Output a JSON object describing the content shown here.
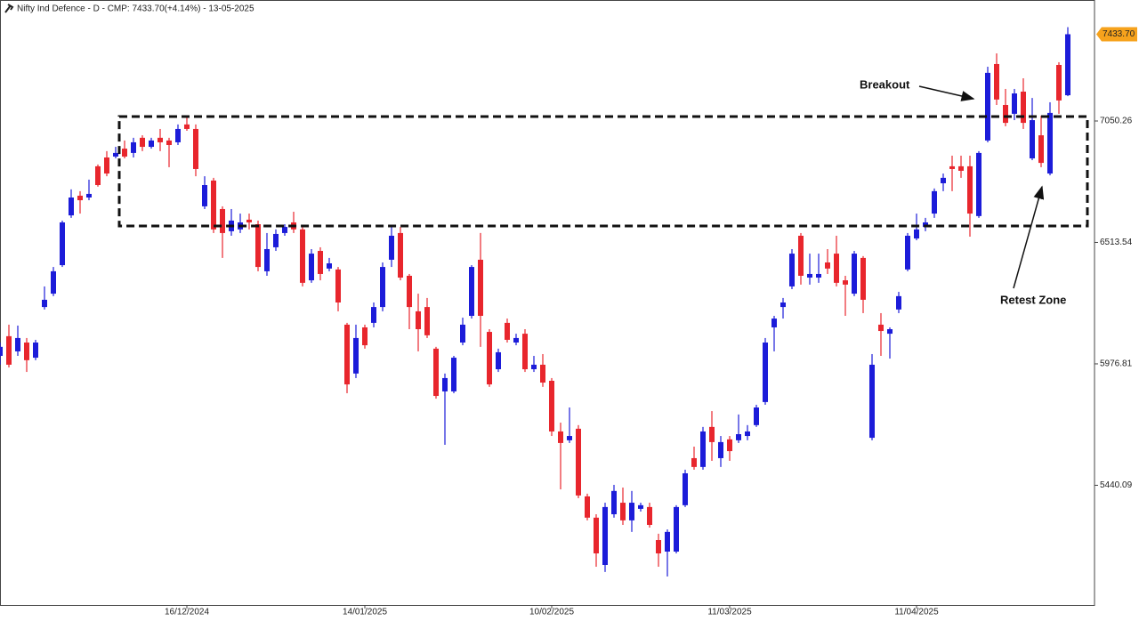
{
  "chart_data": {
    "type": "candlestick",
    "title": "Nifty Ind Defence - D - CMP: 7433.70(+4.14%) - 13-05-2025",
    "categories": [
      null,
      null,
      null,
      null,
      null,
      null,
      null,
      null,
      null,
      null,
      null,
      null,
      null,
      null,
      null,
      null,
      null,
      null,
      null,
      null,
      null,
      "16/12/2024",
      null,
      null,
      null,
      null,
      null,
      null,
      null,
      null,
      null,
      null,
      null,
      null,
      null,
      null,
      null,
      null,
      null,
      null,
      null,
      "14/01/2025",
      null,
      null,
      null,
      null,
      null,
      null,
      null,
      null,
      null,
      null,
      null,
      null,
      null,
      null,
      null,
      null,
      null,
      null,
      null,
      null,
      "10/02/2025",
      null,
      null,
      null,
      null,
      null,
      null,
      null,
      null,
      null,
      null,
      null,
      null,
      null,
      null,
      null,
      null,
      null,
      null,
      null,
      "11/03/2025",
      null,
      null,
      null,
      null,
      null,
      null,
      null,
      null,
      null,
      null,
      null,
      null,
      null,
      null,
      null,
      null,
      null,
      null,
      null,
      null,
      "11/04/2025",
      null,
      null,
      null,
      null,
      null,
      null,
      null,
      null,
      null,
      null,
      null,
      null,
      null,
      null,
      null,
      null,
      null
    ],
    "open": [
      6012,
      6099,
      6032,
      6071,
      6004,
      6228,
      6287,
      6413,
      6633,
      6720,
      6712,
      6850,
      6889,
      6893,
      6928,
      6909,
      6976,
      6936,
      6976,
      6964,
      6956,
      7035,
      7015,
      6673,
      6787,
      6661,
      6563,
      6571,
      6614,
      6594,
      6386,
      6492,
      6555,
      6602,
      6571,
      6346,
      6476,
      6398,
      6394,
      6150,
      5934,
      6138,
      6158,
      6228,
      6437,
      6555,
      6366,
      6209,
      6228,
      6044,
      5855,
      5855,
      6071,
      6189,
      6437,
      6118,
      5953,
      6158,
      6071,
      6110,
      5953,
      5973,
      5902,
      5678,
      5639,
      5690,
      5391,
      5297,
      5088,
      5312,
      5363,
      5285,
      5336,
      5344,
      5198,
      5147,
      5147,
      5352,
      5560,
      5521,
      5698,
      5560,
      5643,
      5639,
      5658,
      5706,
      5808,
      6138,
      6228,
      6319,
      6543,
      6358,
      6358,
      6425,
      6464,
      6346,
      6287,
      6445,
      5650,
      6150,
      6110,
      6217,
      6394,
      6531,
      6582,
      6641,
      6775,
      6850,
      6850,
      6850,
      6630,
      6964,
      7302,
      7121,
      7082,
      7180,
      6885,
      6987,
      6818,
      7298,
      7164
    ],
    "high": [
      6071,
      6150,
      6146,
      6091,
      6083,
      6319,
      6405,
      6610,
      6748,
      6740,
      6791,
      6858,
      6917,
      6936,
      6964,
      6976,
      6987,
      6976,
      7015,
      6976,
      7035,
      7066,
      7035,
      6806,
      6799,
      6673,
      6661,
      6641,
      6641,
      6610,
      6555,
      6571,
      6594,
      6649,
      6582,
      6484,
      6492,
      6445,
      6405,
      6158,
      6150,
      6150,
      6248,
      6425,
      6582,
      6582,
      6374,
      6287,
      6268,
      6052,
      5934,
      6012,
      6181,
      6413,
      6555,
      6130,
      6044,
      6177,
      6110,
      6130,
      6012,
      6020,
      5914,
      5717,
      5784,
      5706,
      5403,
      5312,
      5363,
      5442,
      5430,
      5415,
      5363,
      5363,
      5226,
      5245,
      5352,
      5509,
      5611,
      5698,
      5768,
      5658,
      5658,
      5753,
      5706,
      5796,
      6091,
      6189,
      6268,
      6484,
      6555,
      6464,
      6464,
      6484,
      6543,
      6366,
      6476,
      6453,
      6020,
      6201,
      6138,
      6295,
      6555,
      6641,
      6622,
      6752,
      6818,
      6897,
      6897,
      6897,
      6917,
      7290,
      7349,
      7192,
      7192,
      7239,
      7152,
      7074,
      7133,
      7310,
      7465
    ],
    "low": [
      5973,
      5961,
      6012,
      5941,
      5993,
      6217,
      6276,
      6405,
      6622,
      6641,
      6700,
      6760,
      6806,
      6885,
      6885,
      6889,
      6917,
      6928,
      6917,
      6846,
      6944,
      7007,
      6806,
      6661,
      6555,
      6445,
      6543,
      6555,
      6571,
      6386,
      6366,
      6476,
      6543,
      6555,
      6319,
      6335,
      6346,
      6386,
      6209,
      5847,
      5914,
      6044,
      6138,
      6209,
      6405,
      6346,
      6130,
      6032,
      6091,
      5823,
      5619,
      5847,
      6059,
      6177,
      6052,
      5875,
      5941,
      6071,
      6059,
      5941,
      5941,
      5875,
      5658,
      5422,
      5627,
      5383,
      5285,
      5080,
      5057,
      5297,
      5265,
      5234,
      5324,
      5253,
      5080,
      5037,
      5139,
      5344,
      5509,
      5509,
      5548,
      5521,
      5548,
      5627,
      5639,
      5698,
      5796,
      6032,
      6177,
      6307,
      6327,
      6327,
      6335,
      6374,
      6319,
      6189,
      6276,
      6201,
      5639,
      6012,
      6000,
      6201,
      6386,
      6523,
      6563,
      6622,
      6740,
      6740,
      6799,
      6539,
      6622,
      6956,
      7121,
      7027,
      7054,
      7015,
      6877,
      6846,
      6810,
      7082,
      7160
    ],
    "close": [
      6052,
      5973,
      6091,
      5993,
      6071,
      6260,
      6386,
      6602,
      6712,
      6700,
      6728,
      6767,
      6818,
      6909,
      6893,
      6956,
      6936,
      6964,
      6956,
      6944,
      7015,
      7015,
      6838,
      6767,
      6571,
      6555,
      6610,
      6602,
      6602,
      6405,
      6484,
      6551,
      6582,
      6571,
      6335,
      6464,
      6374,
      6421,
      6248,
      5886,
      6091,
      6059,
      6228,
      6405,
      6543,
      6358,
      6228,
      6130,
      6103,
      5835,
      5914,
      6004,
      6150,
      6405,
      6189,
      5886,
      6028,
      6083,
      6091,
      5953,
      5973,
      5894,
      5678,
      5627,
      5658,
      5395,
      5297,
      5139,
      5344,
      5415,
      5285,
      5363,
      5352,
      5265,
      5139,
      5234,
      5344,
      5493,
      5521,
      5678,
      5631,
      5631,
      5591,
      5666,
      5678,
      5784,
      6071,
      6177,
      6248,
      6464,
      6366,
      6374,
      6374,
      6398,
      6335,
      6327,
      6464,
      6260,
      5973,
      6122,
      6130,
      6276,
      6543,
      6571,
      6602,
      6740,
      6799,
      6838,
      6830,
      6641,
      6909,
      7263,
      7145,
      7042,
      7172,
      7042,
      7054,
      6865,
      7086,
      7141,
      7433.7
    ],
    "up_color": "#1c1cd9",
    "down_color": "#e8262d",
    "ylim": [
      4911,
      7585
    ],
    "yticks": [
      5440.09,
      5976.81,
      6513.54,
      7050.26
    ],
    "price_tag": {
      "value": 7433.7,
      "label": "7433.70"
    },
    "zone": {
      "high": 7070,
      "low": 6586
    },
    "annotations": [
      "Breakout",
      "Retest Zone"
    ]
  }
}
